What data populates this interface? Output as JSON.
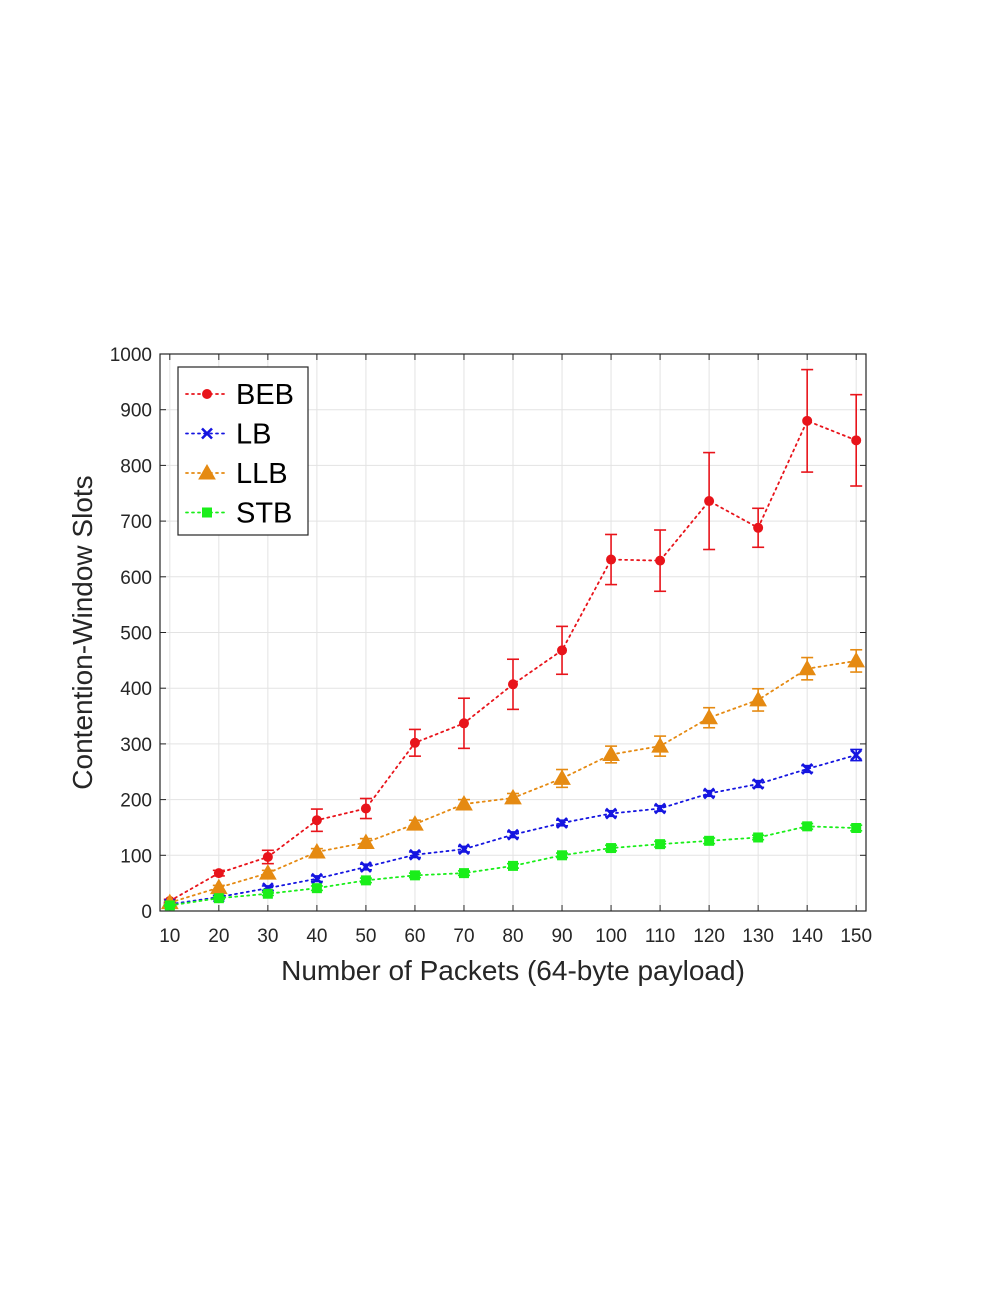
{
  "chart_data": {
    "type": "line",
    "title": "",
    "xlabel": "Number of Packets (64-byte payload)",
    "ylabel": "Contention-Window Slots",
    "x": [
      10,
      20,
      30,
      40,
      50,
      60,
      70,
      80,
      90,
      100,
      110,
      120,
      130,
      140,
      150
    ],
    "xlim": [
      8,
      152
    ],
    "ylim": [
      0,
      1000
    ],
    "xticks": [
      "10",
      "20",
      "30",
      "40",
      "50",
      "60",
      "70",
      "80",
      "90",
      "100",
      "110",
      "120",
      "130",
      "140",
      "150"
    ],
    "yticks": [
      "0",
      "100",
      "200",
      "300",
      "400",
      "500",
      "600",
      "700",
      "800",
      "900",
      "1000"
    ],
    "grid": true,
    "legend_position": "top-left",
    "series": [
      {
        "name": "BEB",
        "color": "#e8141b",
        "marker": "circle",
        "values": [
          18,
          68,
          97,
          163,
          184,
          302,
          337,
          407,
          468,
          631,
          629,
          736,
          688,
          880,
          845
        ],
        "err": [
          3,
          5,
          12,
          20,
          18,
          24,
          45,
          45,
          43,
          45,
          55,
          87,
          35,
          92,
          82
        ]
      },
      {
        "name": "LB",
        "color": "#1515e0",
        "marker": "x",
        "values": [
          12,
          25,
          41,
          58,
          79,
          101,
          111,
          137,
          158,
          175,
          184,
          211,
          228,
          255,
          280
        ],
        "err": [
          2,
          3,
          4,
          5,
          5,
          5,
          5,
          5,
          5,
          5,
          5,
          5,
          6,
          6,
          10
        ]
      },
      {
        "name": "LLB",
        "color": "#e58a12",
        "marker": "triangle",
        "values": [
          15,
          42,
          68,
          106,
          123,
          156,
          192,
          203,
          238,
          281,
          296,
          347,
          379,
          435,
          449
        ],
        "err": [
          2,
          4,
          5,
          6,
          7,
          7,
          8,
          8,
          16,
          15,
          18,
          18,
          20,
          20,
          20
        ]
      },
      {
        "name": "STB",
        "color": "#1aee1a",
        "marker": "square",
        "values": [
          10,
          23,
          31,
          41,
          55,
          64,
          68,
          81,
          100,
          113,
          120,
          126,
          132,
          152,
          149
        ],
        "err": [
          1,
          2,
          3,
          4,
          4,
          4,
          4,
          4,
          4,
          5,
          5,
          5,
          4,
          5,
          5
        ]
      }
    ]
  }
}
